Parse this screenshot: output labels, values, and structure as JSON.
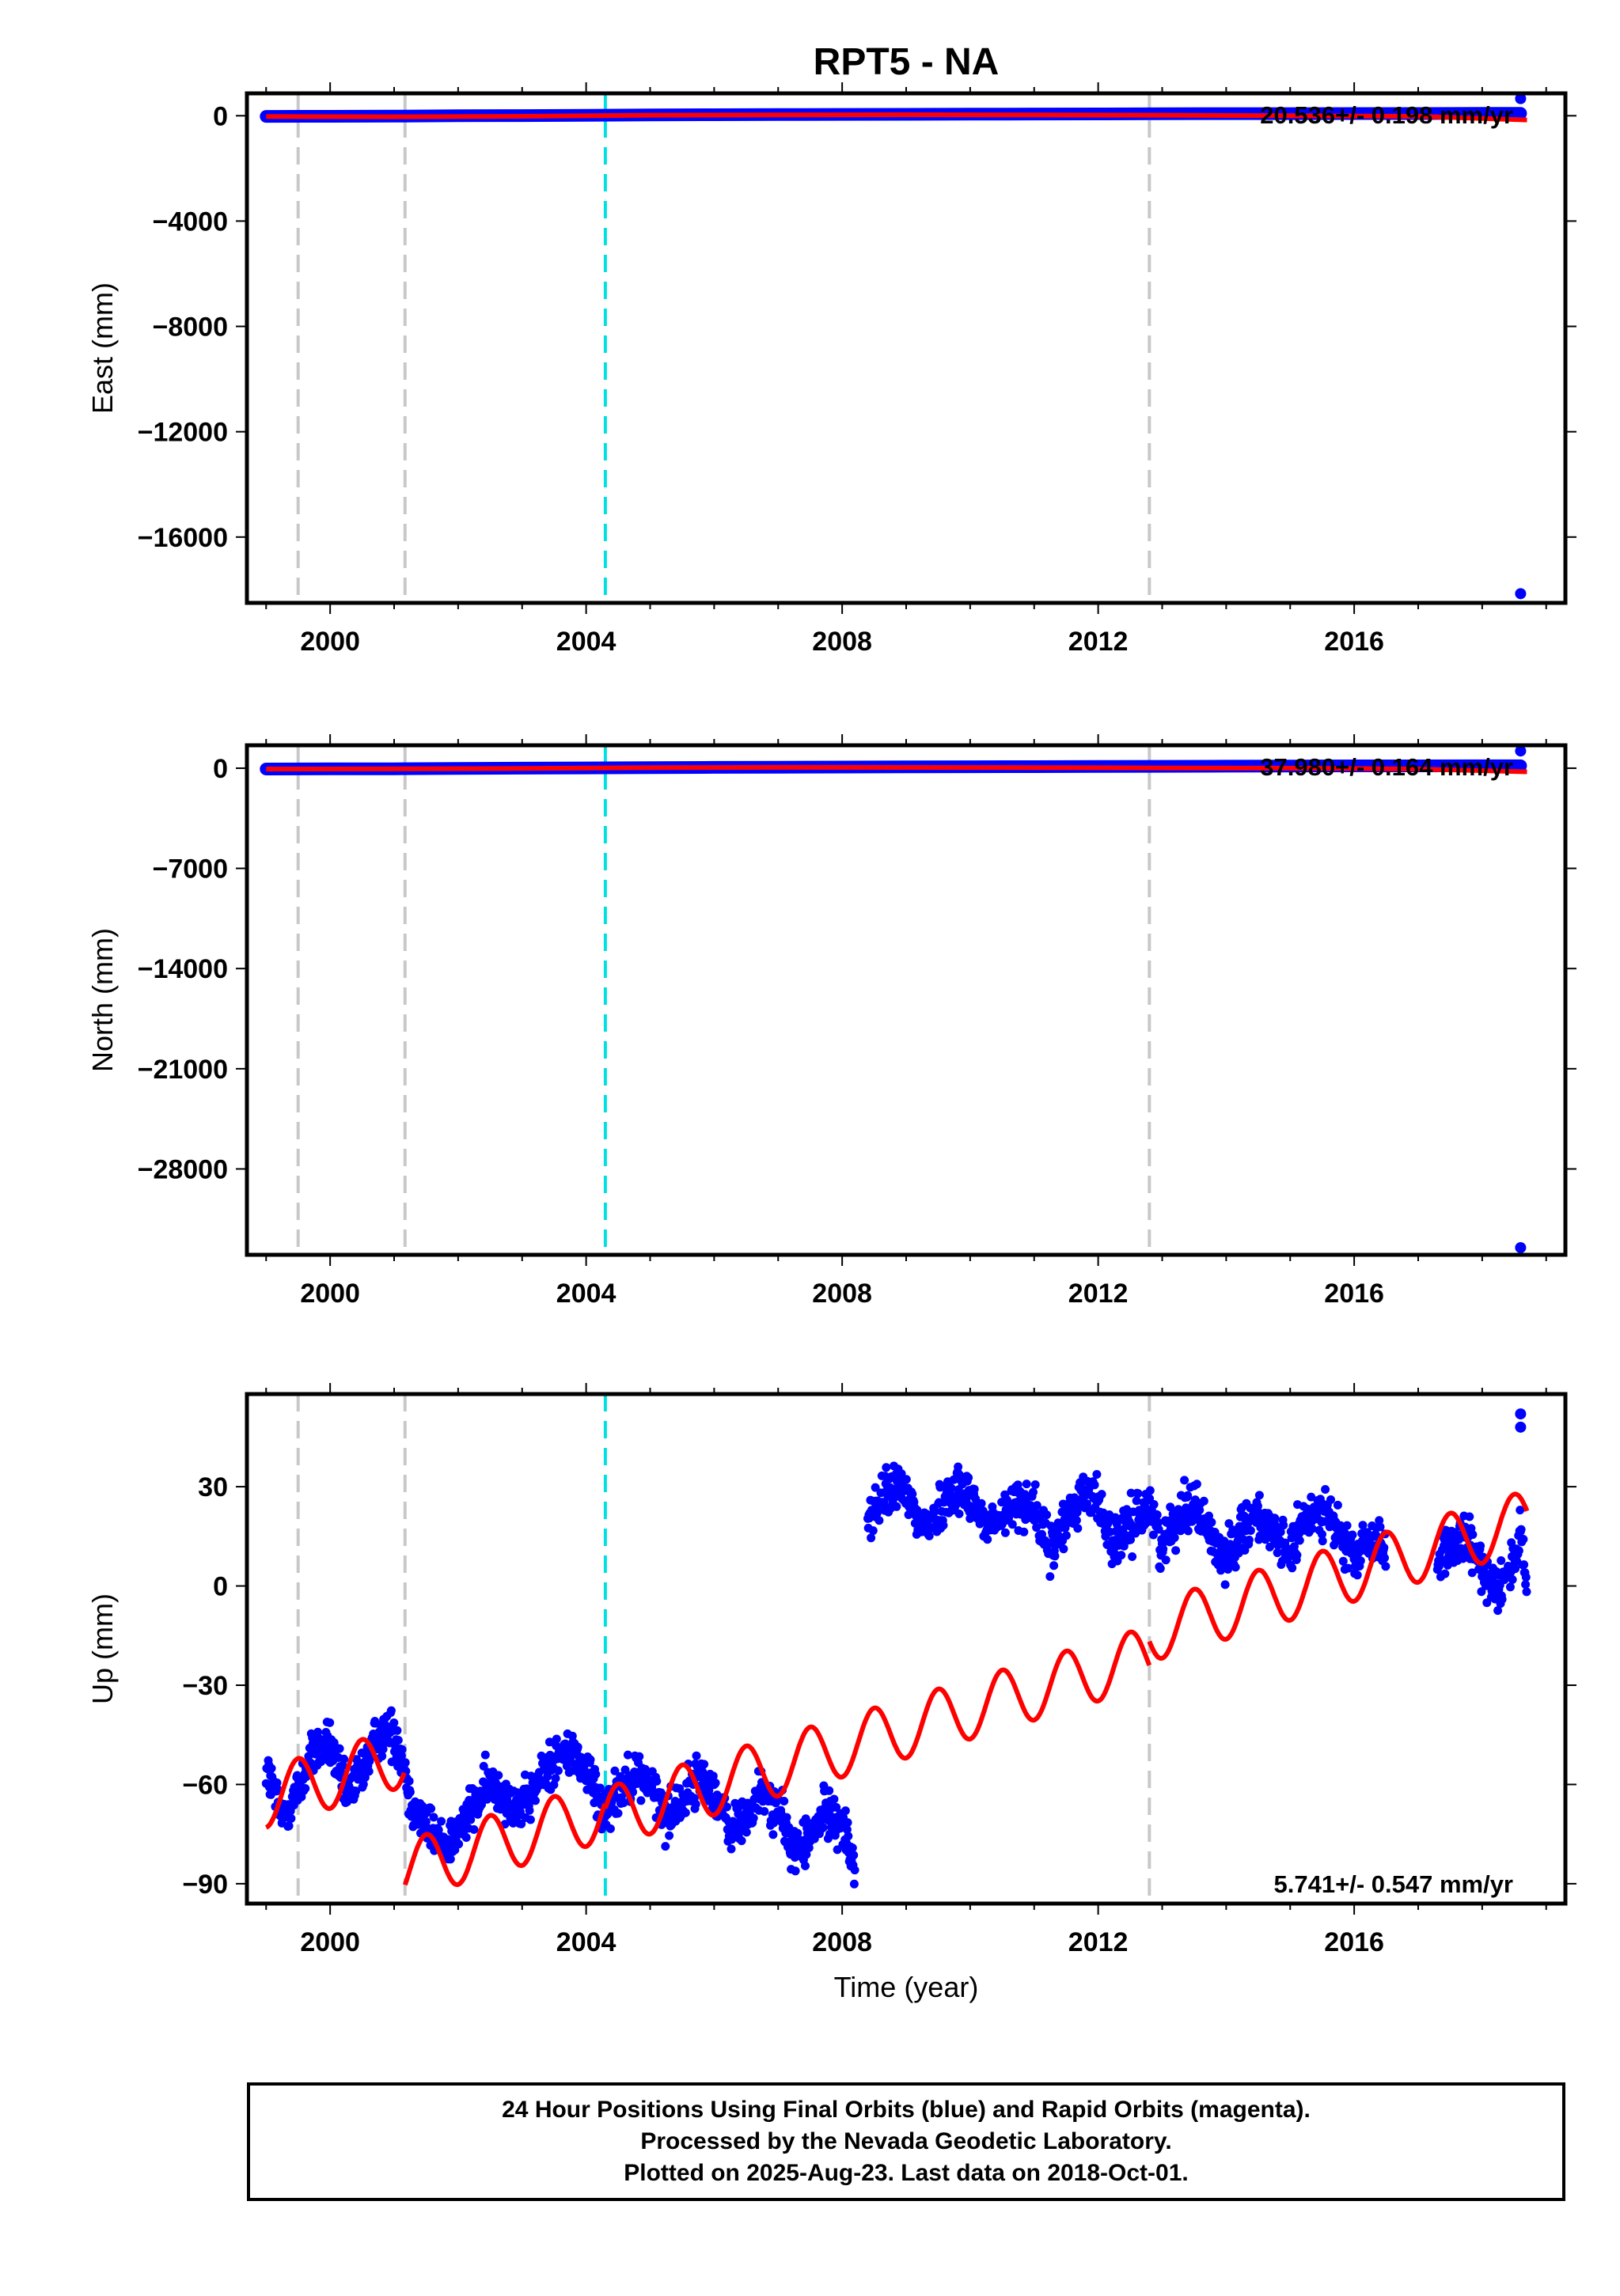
{
  "title": "RPT5 - NA",
  "footer": {
    "line1": "24 Hour Positions Using Final Orbits (blue) and Rapid Orbits (magenta).",
    "line2": "Processed by the Nevada Geodetic Laboratory.",
    "line3": "Plotted on 2025-Aug-23. Last data on 2018-Oct-01."
  },
  "colors": {
    "data": "#0000ff",
    "model": "#ff0000",
    "offset_line": "#c8c8c8",
    "equipment_line": "#00e0e0"
  },
  "chart_data": [
    {
      "type": "scatter",
      "component": "east",
      "title": "RPT5 - NA",
      "xlabel": "",
      "ylabel": "East (mm)",
      "xlim": [
        1998.7,
        2019.3
      ],
      "ylim": [
        -18500,
        850
      ],
      "xticks": [
        2000,
        2004,
        2008,
        2012,
        2016
      ],
      "yticks": [
        0,
        -4000,
        -8000,
        -12000,
        -16000
      ],
      "rate_label": "20.536+/- 0.198 mm/yr",
      "vlines_gray": [
        1999.5,
        2001.17,
        2012.8
      ],
      "vlines_cyan": [
        2004.3
      ],
      "outliers": [
        {
          "x": 2018.6,
          "y": 650
        },
        {
          "x": 2018.6,
          "y": -18150
        }
      ],
      "series": [
        {
          "name": "data",
          "kind": "points",
          "x": [
            1999.0,
            2000.0,
            2001.0,
            2002.0,
            2003.0,
            2004.0,
            2005.0,
            2006.0,
            2007.0,
            2008.0,
            2009.0,
            2010.0,
            2011.0,
            2012.0,
            2013.0,
            2014.0,
            2015.0,
            2016.0,
            2017.0,
            2018.0,
            2018.6
          ],
          "y": [
            -25,
            -20,
            -15,
            0,
            5,
            15,
            30,
            40,
            45,
            50,
            55,
            60,
            65,
            70,
            75,
            80,
            80,
            85,
            85,
            90,
            90
          ]
        },
        {
          "name": "model",
          "kind": "line",
          "x": [
            1999.0,
            2001.0,
            2003.0,
            2005.0,
            2007.0,
            2009.0,
            2011.0,
            2013.0,
            2015.0,
            2017.0,
            2018.7
          ],
          "y": [
            -30,
            -40,
            -20,
            20,
            30,
            40,
            30,
            20,
            0,
            -20,
            -160
          ]
        }
      ]
    },
    {
      "type": "scatter",
      "component": "north",
      "xlabel": "",
      "ylabel": "North (mm)",
      "xlim": [
        1998.7,
        2019.3
      ],
      "ylim": [
        -34000,
        1600
      ],
      "xticks": [
        2000,
        2004,
        2008,
        2012,
        2016
      ],
      "yticks": [
        0,
        -7000,
        -14000,
        -21000,
        -28000
      ],
      "rate_label": "37.980+/- 0.164 mm/yr",
      "vlines_gray": [
        1999.5,
        2001.17,
        2012.8
      ],
      "vlines_cyan": [
        2004.3
      ],
      "outliers": [
        {
          "x": 2018.6,
          "y": 1200
        },
        {
          "x": 2018.6,
          "y": -33500
        }
      ],
      "series": [
        {
          "name": "data",
          "kind": "points",
          "x": [
            1999.0,
            2000.0,
            2001.0,
            2002.0,
            2003.0,
            2004.0,
            2005.0,
            2006.0,
            2007.0,
            2008.0,
            2009.0,
            2010.0,
            2011.0,
            2012.0,
            2013.0,
            2014.0,
            2015.0,
            2016.0,
            2017.0,
            2018.0,
            2018.6
          ],
          "y": [
            -60,
            -50,
            -40,
            -20,
            0,
            20,
            40,
            60,
            70,
            80,
            90,
            100,
            110,
            120,
            130,
            140,
            150,
            160,
            160,
            170,
            170
          ]
        },
        {
          "name": "model",
          "kind": "line",
          "x": [
            1999.0,
            2001.0,
            2003.0,
            2005.0,
            2007.0,
            2009.0,
            2011.0,
            2013.0,
            2015.0,
            2017.0,
            2018.7
          ],
          "y": [
            -60,
            -50,
            -20,
            40,
            60,
            50,
            40,
            20,
            0,
            -60,
            -250
          ]
        }
      ]
    },
    {
      "type": "scatter",
      "component": "up",
      "xlabel": "Time (year)",
      "ylabel": "Up (mm)",
      "xlim": [
        1998.7,
        2019.3
      ],
      "ylim": [
        -96,
        58
      ],
      "xticks": [
        2000,
        2004,
        2008,
        2012,
        2016
      ],
      "yticks": [
        30,
        0,
        -30,
        -60,
        -90
      ],
      "rate_label": "5.741+/- 0.547 mm/yr",
      "vlines_gray": [
        1999.5,
        2001.17,
        2012.8
      ],
      "vlines_cyan": [
        2004.3
      ],
      "series": [
        {
          "name": "data",
          "kind": "points",
          "segments": [
            {
              "x": [
                1999.0,
                1999.25,
                1999.5,
                1999.75,
                2000.0,
                2000.25,
                2000.5,
                2000.75,
                2001.0,
                2001.17,
                2001.25,
                2001.5,
                2001.75,
                2002.0,
                2002.25,
                2002.5,
                2002.75,
                2003.0,
                2003.25,
                2003.5,
                2003.75,
                2004.0,
                2004.25,
                2004.5,
                2004.75,
                2005.0,
                2005.25,
                2005.5,
                2005.75,
                2006.0,
                2006.25,
                2006.5,
                2006.75,
                2007.0,
                2007.25,
                2007.5,
                2007.75,
                2008.0,
                2008.2
              ],
              "y": [
                -55,
                -70,
                -62,
                -50,
                -48,
                -64,
                -56,
                -45,
                -44,
                -55,
                -65,
                -72,
                -78,
                -75,
                -66,
                -60,
                -63,
                -68,
                -60,
                -52,
                -50,
                -55,
                -68,
                -62,
                -56,
                -60,
                -70,
                -65,
                -58,
                -62,
                -74,
                -70,
                -62,
                -68,
                -80,
                -76,
                -68,
                -72,
                -85
              ]
            },
            {
              "x": [
                2008.4,
                2008.6,
                2008.8,
                2009.0,
                2009.25,
                2009.5,
                2009.75,
                2010.0,
                2010.25,
                2010.5,
                2010.75,
                2011.0,
                2011.25,
                2011.5,
                2011.75,
                2012.0,
                2012.25,
                2012.5,
                2012.8,
                2013.0,
                2013.25,
                2013.5,
                2013.75,
                2014.0,
                2014.25,
                2014.5,
                2014.75,
                2015.0,
                2015.25,
                2015.5,
                2015.75,
                2016.0,
                2016.25,
                2016.5
              ],
              "y": [
                20,
                25,
                30,
                28,
                18,
                22,
                30,
                28,
                18,
                20,
                26,
                24,
                10,
                20,
                28,
                26,
                12,
                18,
                25,
                12,
                22,
                25,
                15,
                8,
                18,
                22,
                14,
                10,
                20,
                24,
                16,
                8,
                14,
                12
              ]
            },
            {
              "x": [
                2017.3,
                2017.5,
                2017.75,
                2018.0,
                2018.25,
                2018.5,
                2018.6,
                2018.7
              ],
              "y": [
                8,
                10,
                14,
                5,
                0,
                8,
                16,
                -4
              ]
            }
          ],
          "scatter": 6,
          "outliers": [
            {
              "x": 2018.6,
              "y": 52
            },
            {
              "x": 2018.6,
              "y": 48
            }
          ]
        },
        {
          "name": "model",
          "kind": "line",
          "segments": [
            {
              "x_start": 1999.0,
              "x_end": 2001.17,
              "intercept_year": 1999.0,
              "intercept": -64.0,
              "rate": 5.741,
              "amp": 9.0,
              "phase": 0.25
            },
            {
              "x_start": 2001.17,
              "x_end": 2004.3,
              "intercept_year": 2001.17,
              "intercept": -86.0,
              "rate": 5.741,
              "amp": 9.0,
              "phase": 0.25
            },
            {
              "x_start": 2004.3,
              "x_end": 2012.8,
              "intercept_year": 2004.3,
              "intercept": -70.0,
              "rate": 5.741,
              "amp": 9.0,
              "phase": 0.25
            },
            {
              "x_start": 2012.8,
              "x_end": 2018.7,
              "intercept_year": 2012.8,
              "intercept": -14.0,
              "rate": 5.741,
              "amp": 9.0,
              "phase": 0.25
            }
          ]
        }
      ]
    }
  ]
}
